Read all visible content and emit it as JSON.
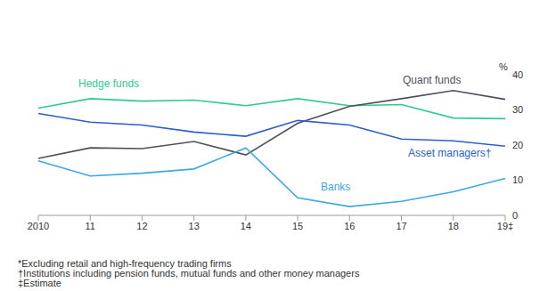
{
  "chart_data": {
    "type": "line",
    "y_label": "%",
    "categories": [
      "2010",
      "11",
      "12",
      "13",
      "14",
      "15",
      "16",
      "17",
      "18",
      "19‡"
    ],
    "series": [
      {
        "name": "Hedge funds",
        "color": "#2dcc8f",
        "values": [
          30.5,
          33.2,
          32.5,
          32.8,
          31.2,
          33.2,
          31.2,
          31.5,
          27.7,
          27.5
        ]
      },
      {
        "name": "Quant funds",
        "color": "#4d4f5c",
        "values": [
          16.2,
          19.2,
          19,
          21,
          17.2,
          26.2,
          31,
          33.2,
          35.5,
          33
        ]
      },
      {
        "name": "Asset managers†",
        "color": "#2c5fc9",
        "values": [
          29,
          26.5,
          25.7,
          23.7,
          22.5,
          27,
          25.7,
          21.7,
          21.2,
          19.7
        ]
      },
      {
        "name": "Banks",
        "color": "#3ba7e6",
        "values": [
          15.5,
          11.2,
          12,
          13.2,
          19.2,
          5,
          2.5,
          4,
          6.7,
          10.5
        ]
      }
    ],
    "ylim": [
      0,
      40
    ],
    "yticks": [
      0,
      10,
      20,
      30,
      40
    ],
    "grid": false,
    "footnotes": [
      "*Excluding retail and high-frequency trading firms",
      "†Institutions including pension funds, mutual funds and other money managers",
      "‡Estimate"
    ]
  }
}
